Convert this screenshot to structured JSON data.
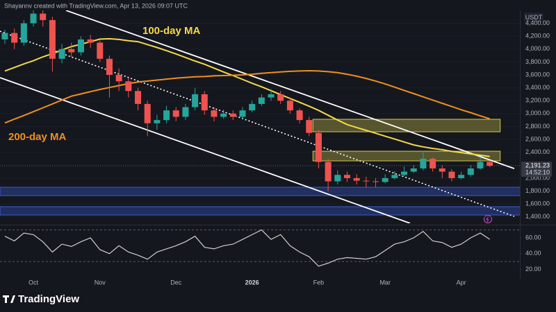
{
  "header": {
    "text": "Shayannv created with TradingView.com, Apr 13, 2026 09:07 UTC"
  },
  "footer": {
    "brand": "TradingView"
  },
  "chart_data": [
    {
      "type": "candlestick",
      "currency": "USDT",
      "categories": [
        null,
        null,
        null,
        "Oct",
        null,
        null,
        null,
        null,
        null,
        null,
        "Nov",
        null,
        null,
        null,
        null,
        null,
        null,
        null,
        "Dec",
        null,
        null,
        null,
        null,
        null,
        null,
        null,
        "2026",
        null,
        null,
        null,
        null,
        null,
        null,
        "Feb",
        null,
        null,
        null,
        null,
        null,
        null,
        "Mar",
        null,
        null,
        null,
        null,
        null,
        null,
        null,
        "Apr",
        null,
        null,
        null
      ],
      "open": [
        4150,
        4250,
        4100,
        4400,
        4550,
        4450,
        3850,
        4000,
        3950,
        4150,
        4100,
        3850,
        3600,
        3500,
        3350,
        3150,
        2850,
        2900,
        3050,
        2950,
        3100,
        3300,
        3050,
        2950,
        3000,
        2950,
        3050,
        3150,
        3250,
        3300,
        3200,
        3050,
        2900,
        2700,
        2250,
        1950,
        2050,
        2000,
        1960,
        1950,
        1940,
        2000,
        2050,
        2100,
        2150,
        2300,
        2150,
        2100,
        2000,
        2050,
        2150,
        2250
      ],
      "high": [
        4300,
        4320,
        4450,
        4700,
        4650,
        4500,
        4080,
        4100,
        4200,
        4220,
        4130,
        3900,
        3700,
        3550,
        3400,
        3200,
        2980,
        3120,
        3100,
        3150,
        3400,
        3350,
        3100,
        3060,
        3050,
        3100,
        3200,
        3300,
        3380,
        3350,
        3250,
        3080,
        2950,
        2750,
        2300,
        2120,
        2100,
        2060,
        2020,
        2000,
        2060,
        2110,
        2180,
        2200,
        2400,
        2320,
        2200,
        2140,
        2100,
        2200,
        2330,
        2280
      ],
      "low": [
        4080,
        4000,
        4050,
        4350,
        4350,
        3650,
        3780,
        3880,
        3900,
        4020,
        3800,
        3250,
        3350,
        3250,
        3050,
        2650,
        2750,
        2850,
        2880,
        2900,
        3050,
        2980,
        2880,
        2920,
        2900,
        2920,
        3020,
        3120,
        3200,
        3150,
        3000,
        2850,
        2650,
        2150,
        1800,
        1900,
        1940,
        1900,
        1850,
        1860,
        1920,
        1980,
        2030,
        2080,
        2120,
        2100,
        2000,
        1950,
        1980,
        2020,
        2130,
        2170
      ],
      "close": [
        4250,
        4100,
        4400,
        4550,
        4450,
        3850,
        4000,
        3950,
        4150,
        4100,
        3850,
        3600,
        3500,
        3350,
        3150,
        2850,
        2900,
        3050,
        2950,
        3100,
        3300,
        3050,
        2950,
        3000,
        2950,
        3050,
        3150,
        3250,
        3300,
        3200,
        3050,
        2900,
        2700,
        2250,
        1950,
        2050,
        2000,
        1960,
        1950,
        1940,
        2000,
        2050,
        2100,
        2150,
        2300,
        2150,
        2100,
        2000,
        2050,
        2150,
        2250,
        2191.23
      ],
      "up_color": "#26a69a",
      "down_color": "#ef5350",
      "last_price": {
        "value": 2191.23,
        "label": "2,191.23"
      },
      "countdown": "14:52:10",
      "overlays": [
        {
          "name": "100-day MA",
          "color": "#f5d94a",
          "values": [
            3660,
            3715,
            3770,
            3820,
            3880,
            3930,
            3985,
            4040,
            4075,
            4115,
            4155,
            4160,
            4150,
            4130,
            4115,
            4070,
            4025,
            3975,
            3925,
            3870,
            3815,
            3765,
            3705,
            3645,
            3590,
            3530,
            3470,
            3415,
            3355,
            3295,
            3235,
            3175,
            3115,
            3050,
            2975,
            2900,
            2830,
            2785,
            2740,
            2695,
            2650,
            2605,
            2560,
            2515,
            2485,
            2460,
            2440,
            2415,
            2395,
            2375,
            2355,
            2335
          ]
        },
        {
          "name": "200-day MA",
          "color": "#f0901e",
          "values": [
            2855,
            2915,
            2970,
            3030,
            3090,
            3150,
            3210,
            3270,
            3305,
            3340,
            3375,
            3405,
            3435,
            3465,
            3490,
            3505,
            3520,
            3535,
            3550,
            3560,
            3570,
            3575,
            3585,
            3590,
            3595,
            3600,
            3610,
            3625,
            3635,
            3645,
            3655,
            3660,
            3665,
            3660,
            3650,
            3635,
            3610,
            3580,
            3545,
            3505,
            3460,
            3410,
            3360,
            3310,
            3260,
            3210,
            3160,
            3110,
            3060,
            3015,
            2965,
            2920
          ]
        }
      ],
      "zones": [
        {
          "low": 2718,
          "high": 2912,
          "x": [
            32.4,
            52.1
          ],
          "color": "#d4c94a"
        },
        {
          "low": 2267,
          "high": 2417,
          "x": [
            32.4,
            52.1
          ],
          "color": "#d4c94a"
        },
        {
          "low": 1729,
          "high": 1858,
          "x": [
            -0.51,
            54.2
          ],
          "color": "#3a5bd9"
        },
        {
          "low": 1428,
          "high": 1557,
          "x": [
            -0.51,
            54.2
          ],
          "color": "#3a5bd9"
        }
      ],
      "trendlines": [
        {
          "x": [
            6.43,
            53.58
          ],
          "y": [
            4600,
            2148
          ],
          "style": "solid"
        },
        {
          "x": [
            -0.51,
            42.62
          ],
          "y": [
            3557,
            1300
          ],
          "style": "solid"
        },
        {
          "x": [
            -0.51,
            53.58
          ],
          "y": [
            4277,
            1406
          ],
          "style": "dotted"
        }
      ],
      "grid": true,
      "ylim": [
        1300,
        4600
      ],
      "yticks": [
        {
          "value": 1400,
          "label": "1,400.00"
        },
        {
          "value": 1600,
          "label": "1,600.00"
        },
        {
          "value": 1800,
          "label": "1,800.00"
        },
        {
          "value": 2000,
          "label": "2,000.00"
        },
        {
          "value": 2200,
          "label": "2,200.00"
        },
        {
          "value": 2400,
          "label": "2,400.00"
        },
        {
          "value": 2600,
          "label": "2,600.00"
        },
        {
          "value": 2800,
          "label": "2,800.00"
        },
        {
          "value": 3000,
          "label": "3,000.00"
        },
        {
          "value": 3200,
          "label": "3,200.00"
        },
        {
          "value": 3400,
          "label": "3,400.00"
        },
        {
          "value": 3600,
          "label": "3,600.00"
        },
        {
          "value": 3800,
          "label": "3,800.00"
        },
        {
          "value": 4000,
          "label": "4,000.00"
        },
        {
          "value": 4200,
          "label": "4,200.00"
        },
        {
          "value": 4400,
          "label": "4,400.00"
        }
      ]
    },
    {
      "type": "line",
      "color": "#d0d0d0",
      "values": [
        62,
        56,
        66,
        64,
        55,
        42,
        52,
        49,
        55,
        60,
        45,
        40,
        50,
        42,
        38,
        33,
        42,
        46,
        50,
        55,
        62,
        48,
        46,
        50,
        52,
        58,
        64,
        70,
        58,
        64,
        50,
        42,
        36,
        24,
        28,
        33,
        35,
        34,
        33,
        36,
        44,
        52,
        55,
        60,
        68,
        56,
        54,
        48,
        52,
        60,
        66,
        58
      ],
      "levels": [
        70,
        30
      ],
      "ylim": [
        10,
        74
      ],
      "yticks": [
        {
          "value": 20,
          "label": "20.00"
        },
        {
          "value": 40,
          "label": "40.00"
        },
        {
          "value": 60,
          "label": "60.00"
        }
      ]
    }
  ]
}
